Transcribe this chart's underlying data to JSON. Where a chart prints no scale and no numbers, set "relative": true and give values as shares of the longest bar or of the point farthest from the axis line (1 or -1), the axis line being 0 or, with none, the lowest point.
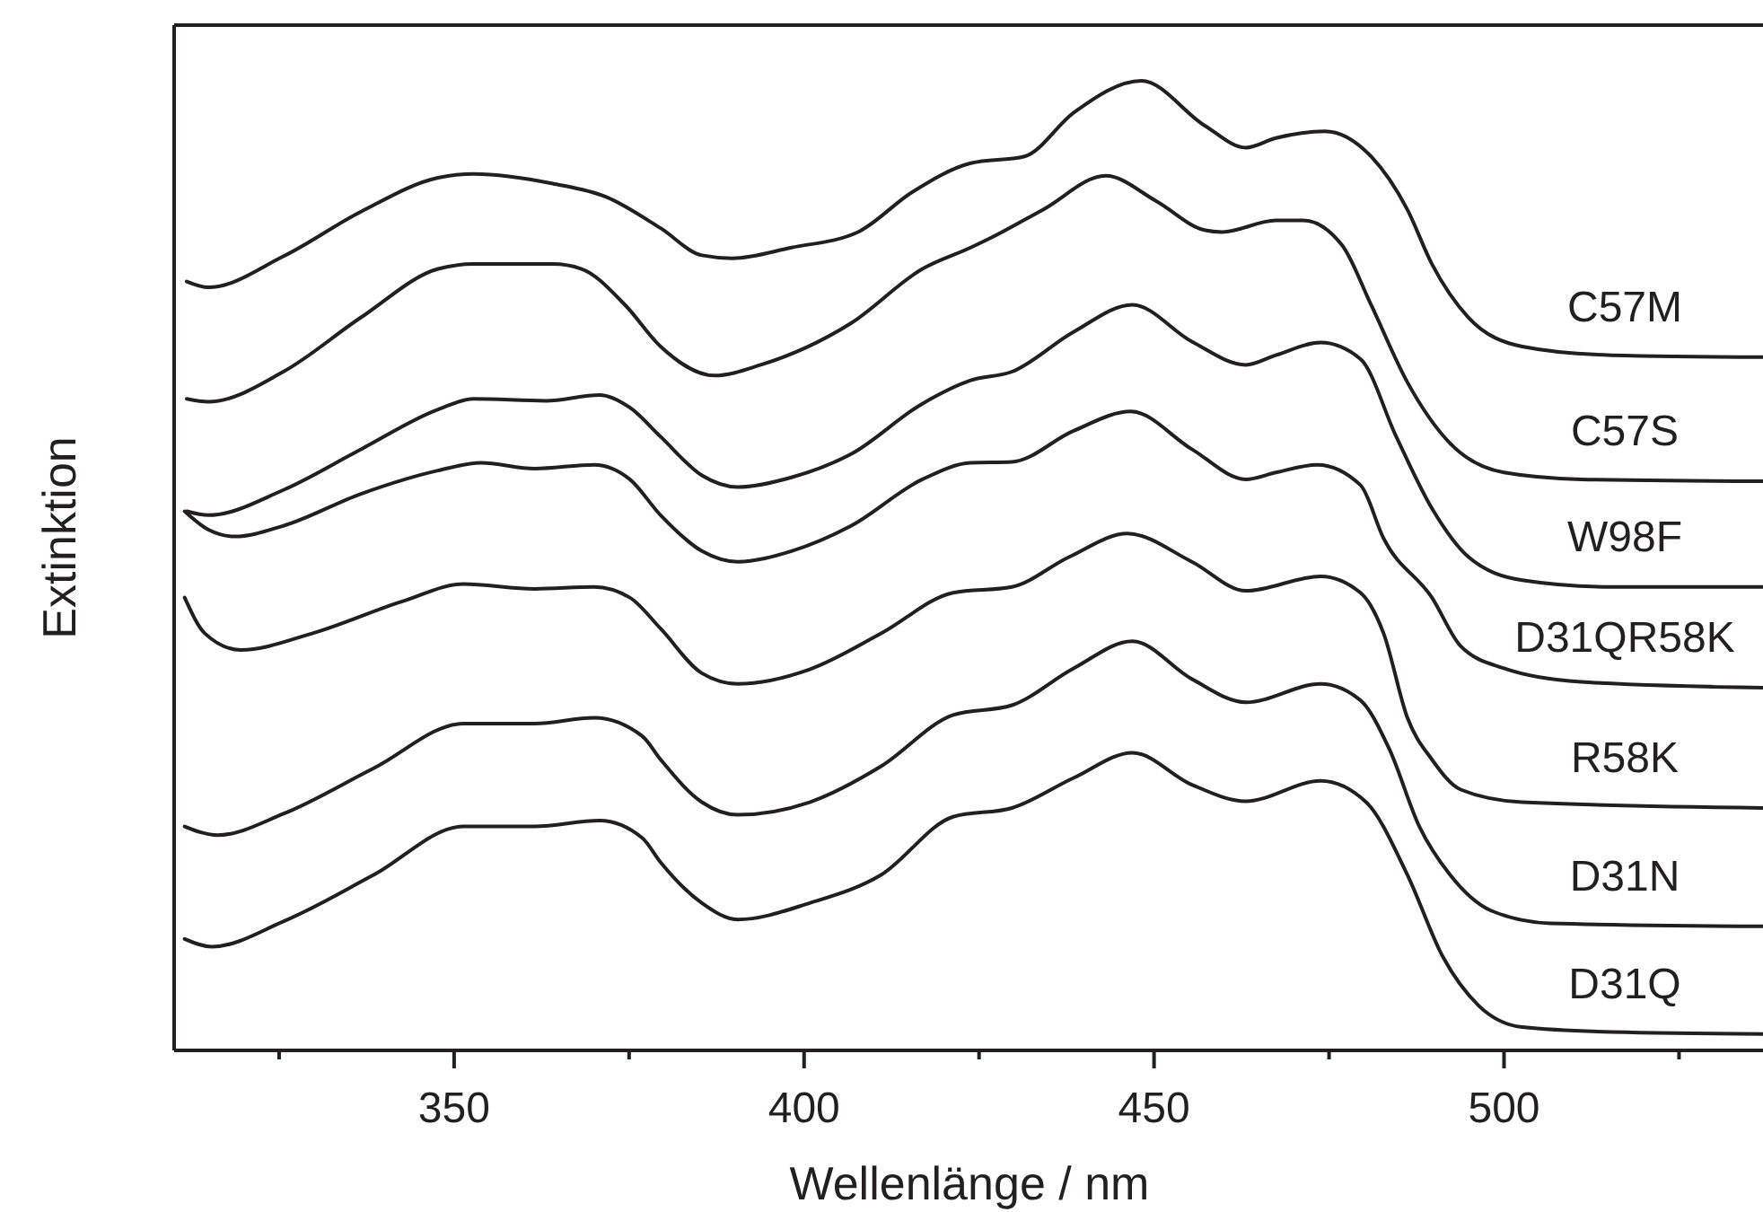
{
  "chart_data": {
    "type": "line",
    "relative": true,
    "xlabel": "Wellenlänge / nm",
    "ylabel": "Extinktion",
    "xlim": [
      310,
      537
    ],
    "xticks": [
      {
        "value": 325,
        "label": null
      },
      350,
      {
        "value": 375,
        "label": null
      },
      400,
      {
        "value": 425,
        "label": null
      },
      450,
      {
        "value": 475,
        "label": null
      },
      500,
      {
        "value": 525,
        "label": null
      }
    ],
    "grid": false,
    "marker": "none",
    "line_style": "solid",
    "series": [
      {
        "name": "C57M",
        "color": "#231f20",
        "x": [
          311.8,
          314.9,
          325.6,
          336.7,
          347.7,
          352.8,
          364.1,
          371.8,
          379.5,
          385.4,
          389.7,
          398.2,
          407.7,
          415.4,
          423.8,
          431.5,
          438.5,
          448.2,
          457.2,
          463.1,
          467.4,
          474.4,
          481.0,
          486.2,
          489.7,
          494.9,
          502.6,
          515.4,
          537
        ],
        "values": [
          0.793,
          0.787,
          0.819,
          0.865,
          0.9,
          0.904,
          0.894,
          0.88,
          0.848,
          0.82,
          0.817,
          0.828,
          0.844,
          0.885,
          0.915,
          0.922,
          0.967,
          1.0,
          0.954,
          0.931,
          0.941,
          0.948,
          0.922,
          0.867,
          0.811,
          0.756,
          0.726,
          0.717,
          0.715
        ]
      },
      {
        "name": "C57S",
        "color": "#231f20",
        "x": [
          311.8,
          314.9,
          325.6,
          336.7,
          347.7,
          352.8,
          364.1,
          368.2,
          374.4,
          379.5,
          387.2,
          393.8,
          406.7,
          416.9,
          423.8,
          426.4,
          434.1,
          443.1,
          450.3,
          457.2,
          459.7,
          467.4,
          471.3,
          476.9,
          481.0,
          486.2,
          492.3,
          500.0,
          511.0,
          537
        ],
        "values": [
          0.672,
          0.669,
          0.7,
          0.756,
          0.806,
          0.811,
          0.811,
          0.806,
          0.769,
          0.726,
          0.696,
          0.707,
          0.75,
          0.806,
          0.828,
          0.837,
          0.867,
          0.902,
          0.876,
          0.846,
          0.844,
          0.856,
          0.856,
          0.83,
          0.769,
          0.689,
          0.626,
          0.596,
          0.589,
          0.587
        ]
      },
      {
        "name": "W98F",
        "color": "#231f20",
        "x": [
          311.8,
          314.9,
          325.6,
          336.7,
          347.7,
          352.8,
          363.1,
          370.8,
          375.1,
          379.5,
          385.4,
          390.5,
          398.2,
          406.7,
          416.9,
          423.8,
          429.7,
          438.5,
          446.9,
          455.4,
          463.1,
          467.4,
          473.8,
          479.5,
          484.6,
          489.7,
          494.9,
          502.6,
          515.4,
          537
        ],
        "values": [
          0.556,
          0.552,
          0.578,
          0.62,
          0.661,
          0.672,
          0.67,
          0.676,
          0.663,
          0.633,
          0.593,
          0.581,
          0.591,
          0.615,
          0.667,
          0.691,
          0.7,
          0.741,
          0.769,
          0.731,
          0.707,
          0.717,
          0.73,
          0.713,
          0.633,
          0.559,
          0.509,
          0.485,
          0.478,
          0.478
        ]
      },
      {
        "name": "D31QR58K",
        "color": "#231f20",
        "x": [
          311.5,
          314.9,
          318.7,
          325.6,
          336.7,
          347.7,
          353.8,
          361.5,
          370.0,
          375.1,
          379.5,
          385.4,
          390.5,
          398.2,
          406.7,
          416.9,
          423.8,
          429.7,
          438.5,
          446.7,
          455.4,
          463.1,
          467.4,
          473.3,
          479.5,
          482.8,
          489.7,
          493.8,
          500.0,
          511.0,
          537
        ],
        "values": [
          0.556,
          0.537,
          0.53,
          0.541,
          0.574,
          0.598,
          0.606,
          0.6,
          0.604,
          0.589,
          0.552,
          0.515,
          0.504,
          0.515,
          0.541,
          0.589,
          0.606,
          0.607,
          0.639,
          0.659,
          0.62,
          0.589,
          0.596,
          0.604,
          0.583,
          0.528,
          0.467,
          0.417,
          0.394,
          0.38,
          0.374
        ]
      },
      {
        "name": "R58K",
        "color": "#231f20",
        "x": [
          311.5,
          314.4,
          319.5,
          329.7,
          342.6,
          351.3,
          361.5,
          370.0,
          375.1,
          379.5,
          385.4,
          390.5,
          400.8,
          411.0,
          421.3,
          429.7,
          437.9,
          446.2,
          455.4,
          463.1,
          473.8,
          479.5,
          482.8,
          486.2,
          489.7,
          493.8,
          502.6,
          537
        ],
        "values": [
          0.467,
          0.43,
          0.413,
          0.43,
          0.463,
          0.481,
          0.476,
          0.478,
          0.467,
          0.435,
          0.389,
          0.378,
          0.393,
          0.43,
          0.472,
          0.478,
          0.509,
          0.533,
          0.504,
          0.474,
          0.489,
          0.472,
          0.43,
          0.343,
          0.3,
          0.269,
          0.256,
          0.25
        ]
      },
      {
        "name": "D31N",
        "color": "#231f20",
        "x": [
          311.5,
          316.2,
          325.6,
          338.5,
          351.3,
          361.5,
          370.0,
          376.9,
          379.5,
          385.4,
          390.5,
          400.8,
          411.0,
          421.3,
          429.7,
          438.5,
          446.9,
          455.4,
          463.1,
          473.8,
          479.5,
          483.6,
          487.9,
          492.3,
          498.2,
          506.7,
          537
        ],
        "values": [
          0.231,
          0.222,
          0.244,
          0.291,
          0.337,
          0.337,
          0.343,
          0.324,
          0.3,
          0.256,
          0.243,
          0.256,
          0.293,
          0.346,
          0.356,
          0.394,
          0.422,
          0.383,
          0.359,
          0.378,
          0.361,
          0.311,
          0.231,
          0.181,
          0.144,
          0.131,
          0.128
        ]
      },
      {
        "name": "D31Q",
        "color": "#231f20",
        "x": [
          311.5,
          315.4,
          325.6,
          338.5,
          351.3,
          361.5,
          370.8,
          376.9,
          379.5,
          385.4,
          390.5,
          400.8,
          411.0,
          421.3,
          429.7,
          438.5,
          446.9,
          455.4,
          463.1,
          473.8,
          480.3,
          486.2,
          491.3,
          496.4,
          502.6,
          515.4,
          537
        ],
        "values": [
          0.115,
          0.107,
          0.133,
          0.181,
          0.231,
          0.231,
          0.237,
          0.219,
          0.194,
          0.152,
          0.135,
          0.152,
          0.181,
          0.241,
          0.25,
          0.281,
          0.307,
          0.274,
          0.257,
          0.278,
          0.256,
          0.181,
          0.096,
          0.046,
          0.024,
          0.019,
          0.017
        ]
      }
    ]
  }
}
